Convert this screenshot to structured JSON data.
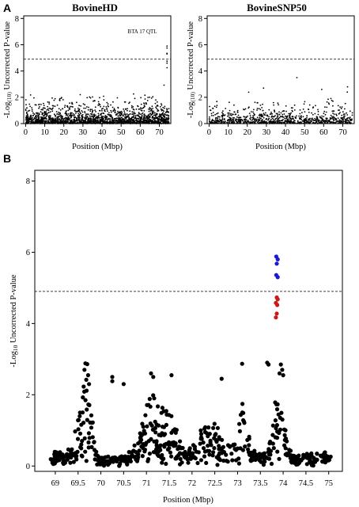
{
  "figure": {
    "panel_labels": [
      "A",
      "B"
    ]
  },
  "chart_data": [
    {
      "id": "top-left",
      "type": "scatter",
      "title": "BovineHD",
      "xlabel": "Position (Mbp)",
      "ylabel_prefix": "-Log",
      "ylabel_sub": "(10)",
      "ylabel_rest": " Uncorrected P-value",
      "xlim": [
        -1,
        76
      ],
      "ylim": [
        0,
        8.2
      ],
      "xticks": [
        0,
        10,
        20,
        30,
        40,
        50,
        60,
        70
      ],
      "yticks": [
        0,
        2,
        4,
        6,
        8
      ],
      "threshold": 4.9,
      "annotation": {
        "text": "BTA 17 QTL",
        "x": 74,
        "y": 6.6
      },
      "density": "high",
      "point_color": "#000000",
      "highlight_points": [
        {
          "x": 74.0,
          "y": 5.9
        },
        {
          "x": 74.0,
          "y": 5.75
        },
        {
          "x": 74.0,
          "y": 5.35
        },
        {
          "x": 74.0,
          "y": 5.3
        },
        {
          "x": 74.0,
          "y": 4.75
        },
        {
          "x": 74.0,
          "y": 4.6
        },
        {
          "x": 74.0,
          "y": 4.25
        }
      ]
    },
    {
      "id": "top-right",
      "type": "scatter",
      "title": "BovineSNP50",
      "xlabel": "Position (Mbp)",
      "ylabel_prefix": "-Log",
      "ylabel_sub": "(10)",
      "ylabel_rest": " Uncorrected P-value",
      "xlim": [
        -1,
        76
      ],
      "ylim": [
        0,
        8.2
      ],
      "xticks": [
        0,
        10,
        20,
        30,
        40,
        50,
        60,
        70
      ],
      "yticks": [
        0,
        2,
        4,
        6,
        8
      ],
      "threshold": 4.9,
      "density": "low",
      "point_color": "#000000",
      "highlight_points": [
        {
          "x": 46.0,
          "y": 3.5
        },
        {
          "x": 28.5,
          "y": 2.7
        },
        {
          "x": 59.0,
          "y": 2.6
        },
        {
          "x": 72.5,
          "y": 2.8
        }
      ]
    },
    {
      "id": "bottom",
      "type": "scatter",
      "xlabel": "Position (Mbp)",
      "ylabel_prefix": "-Log",
      "ylabel_sub": "10",
      "ylabel_rest": " Uncorrected P-value",
      "xlim": [
        68.55,
        75.3
      ],
      "ylim": [
        -0.15,
        8.3
      ],
      "xticks": [
        69,
        69.5,
        70,
        70.5,
        71,
        71.5,
        72,
        72.5,
        73,
        73.5,
        74,
        74.5,
        75
      ],
      "yticks": [
        0,
        2,
        4,
        6,
        8
      ],
      "threshold": 4.9,
      "point_color": "#000000",
      "series": [
        {
          "name": "",
          "color": "#1a1ad6",
          "points": [
            {
              "x": 73.85,
              "y": 5.88
            },
            {
              "x": 73.88,
              "y": 5.8
            },
            {
              "x": 73.86,
              "y": 5.68
            },
            {
              "x": 73.85,
              "y": 5.36
            },
            {
              "x": 73.88,
              "y": 5.3
            }
          ]
        },
        {
          "name": "",
          "color": "#cc1a1a",
          "points": [
            {
              "x": 73.86,
              "y": 4.73
            },
            {
              "x": 73.88,
              "y": 4.68
            },
            {
              "x": 73.84,
              "y": 4.58
            },
            {
              "x": 73.87,
              "y": 4.52
            },
            {
              "x": 73.86,
              "y": 4.28
            },
            {
              "x": 73.84,
              "y": 4.17
            }
          ]
        }
      ],
      "highlight_black": [
        {
          "x": 69.66,
          "y": 2.88
        },
        {
          "x": 69.7,
          "y": 2.86
        },
        {
          "x": 69.64,
          "y": 2.7
        },
        {
          "x": 69.72,
          "y": 2.55
        },
        {
          "x": 69.68,
          "y": 2.42
        },
        {
          "x": 69.74,
          "y": 2.3
        },
        {
          "x": 70.25,
          "y": 2.5
        },
        {
          "x": 70.25,
          "y": 2.38
        },
        {
          "x": 70.5,
          "y": 2.3
        },
        {
          "x": 71.1,
          "y": 2.6
        },
        {
          "x": 71.15,
          "y": 2.5
        },
        {
          "x": 71.55,
          "y": 2.55
        },
        {
          "x": 72.65,
          "y": 2.45
        },
        {
          "x": 73.1,
          "y": 2.87
        },
        {
          "x": 73.65,
          "y": 2.9
        },
        {
          "x": 73.68,
          "y": 2.85
        },
        {
          "x": 73.95,
          "y": 2.85
        },
        {
          "x": 73.98,
          "y": 2.7
        },
        {
          "x": 73.92,
          "y": 2.6
        },
        {
          "x": 74.0,
          "y": 2.55
        }
      ]
    }
  ]
}
